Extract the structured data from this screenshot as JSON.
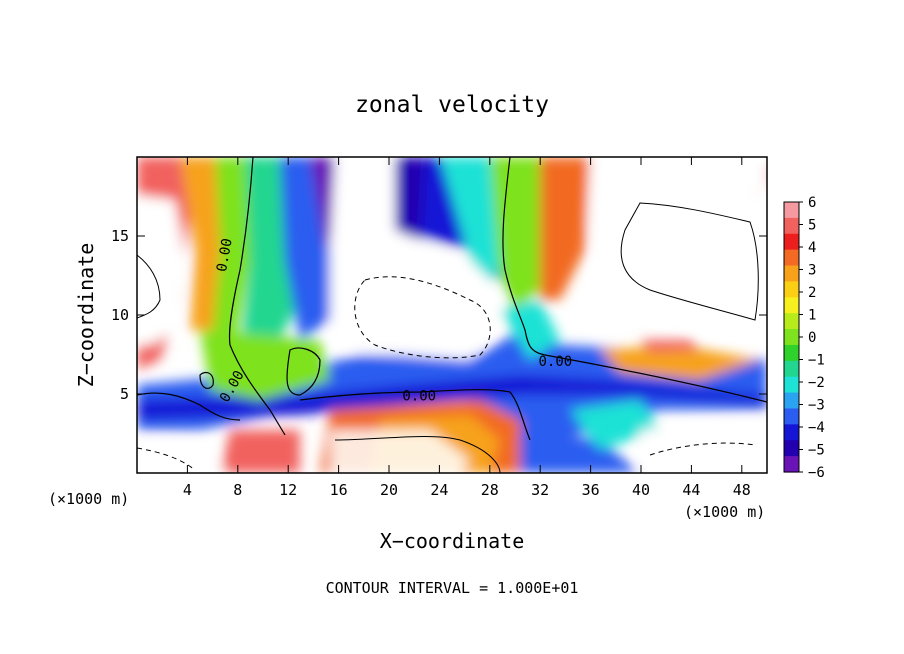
{
  "chart_data": {
    "type": "heatmap",
    "title": "zonal velocity",
    "xlabel": "X−coordinate",
    "ylabel": "Z−coordinate",
    "x_unit_left": "(×1000 m)",
    "x_unit_right": "(×1000 m)",
    "footer": "CONTOUR INTERVAL = 1.000E+01",
    "xlim": [
      0,
      50
    ],
    "ylim": [
      0,
      20
    ],
    "xticks": [
      4,
      8,
      12,
      16,
      20,
      24,
      28,
      32,
      36,
      40,
      44,
      48
    ],
    "yticks": [
      5,
      10,
      15
    ],
    "colorbar": {
      "range": [
        -6,
        6
      ],
      "tick_values": [
        6,
        5,
        4,
        3,
        2,
        1,
        0,
        -1,
        -2,
        -3,
        -4,
        -5,
        -6
      ],
      "tick_labels": [
        "6",
        "5",
        "4",
        "3",
        "2",
        "1",
        "0",
        "−1",
        "−2",
        "−3",
        "−4",
        "−5",
        "−6"
      ],
      "colors_high_to_low": [
        "#f49aa0",
        "#f1625e",
        "#ec1f1e",
        "#f26a24",
        "#f7a21a",
        "#fbcf13",
        "#f6f01e",
        "#b8eb1b",
        "#7ee21e",
        "#2fd12b",
        "#22d690",
        "#1fe2d6",
        "#2aa4f0",
        "#2a5df0",
        "#1515d6",
        "#2200b0",
        "#6a14b8"
      ]
    },
    "contour_labels": [
      {
        "text": "0.00",
        "x": 6.9,
        "z": 13.8,
        "angle": -80
      },
      {
        "text": "0.00",
        "x": 7.5,
        "z": 5.5,
        "angle": -60
      },
      {
        "text": "0.00",
        "x": 22.4,
        "z": 4.9,
        "angle": 0
      },
      {
        "text": "0.00",
        "x": 33.2,
        "z": 7.1,
        "angle": 0
      }
    ]
  }
}
